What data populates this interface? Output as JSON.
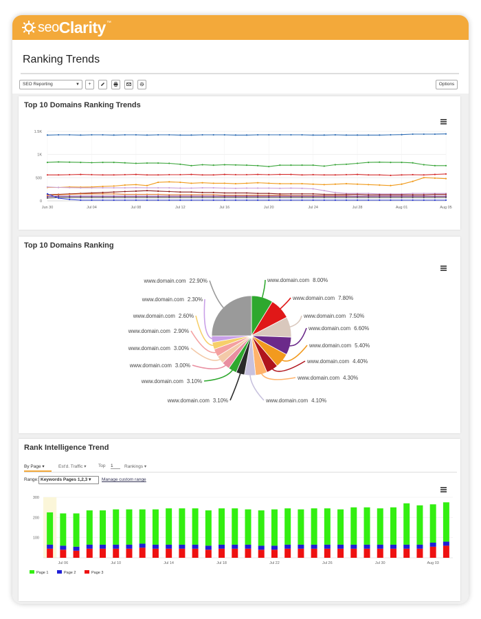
{
  "brand": {
    "seo": "seo",
    "clarity": "Clarity",
    "tm": "™"
  },
  "page_title": "Ranking Trends",
  "toolbar": {
    "report_select": "SEO Reporting",
    "options_label": "Options",
    "icons": [
      "plus-icon",
      "pencil-icon",
      "print-icon",
      "mail-icon",
      "gear-icon"
    ]
  },
  "colors": {
    "accent": "#f3a93a"
  },
  "panel1": {
    "title": "Top 10 Domains Ranking Trends"
  },
  "panel2": {
    "title": "Top 10 Domains Ranking"
  },
  "panel3": {
    "title": "Rank Intelligence Trend",
    "tabs": [
      "By Page",
      "Est'd. Traffic",
      "Top",
      "1",
      "Rankings"
    ],
    "range_label": "Range:",
    "range_value": "Keywords Pages 1,2,3",
    "manage_link": "Manage custom range"
  },
  "chart_data": [
    {
      "type": "line",
      "x": [
        "Jun 30",
        "Jul 01",
        "Jul 02",
        "Jul 03",
        "Jul 04",
        "Jul 05",
        "Jul 06",
        "Jul 07",
        "Jul 08",
        "Jul 09",
        "Jul 10",
        "Jul 11",
        "Jul 12",
        "Jul 13",
        "Jul 14",
        "Jul 15",
        "Jul 16",
        "Jul 17",
        "Jul 18",
        "Jul 19",
        "Jul 20",
        "Jul 21",
        "Jul 22",
        "Jul 23",
        "Jul 24",
        "Jul 25",
        "Jul 26",
        "Jul 27",
        "Jul 28",
        "Jul 29",
        "Jul 30",
        "Jul 31",
        "Aug 01",
        "Aug 02",
        "Aug 03",
        "Aug 04",
        "Aug 05"
      ],
      "x_tick_labels": [
        "Jun 30",
        "Jul 04",
        "Jul 08",
        "Jul 12",
        "Jul 16",
        "Jul 20",
        "Jul 24",
        "Jul 28",
        "Aug 01",
        "Aug 05"
      ],
      "y_ticks": [
        "0",
        "500",
        "1K",
        "1.5K"
      ],
      "ylim": [
        0,
        1500
      ],
      "grid": true,
      "series": [
        {
          "color": "#2e6db4",
          "values": [
            1420,
            1425,
            1425,
            1420,
            1425,
            1425,
            1420,
            1425,
            1425,
            1420,
            1425,
            1425,
            1420,
            1420,
            1425,
            1425,
            1425,
            1420,
            1420,
            1425,
            1425,
            1425,
            1425,
            1425,
            1420,
            1420,
            1425,
            1420,
            1420,
            1420,
            1420,
            1425,
            1430,
            1440,
            1440,
            1440,
            1445
          ]
        },
        {
          "color": "#3aa53a",
          "values": [
            830,
            840,
            835,
            830,
            825,
            830,
            830,
            820,
            810,
            815,
            815,
            810,
            790,
            760,
            780,
            770,
            780,
            775,
            770,
            760,
            740,
            770,
            770,
            770,
            770,
            750,
            780,
            790,
            810,
            830,
            835,
            830,
            830,
            820,
            780,
            760,
            760
          ]
        },
        {
          "color": "#d42b2b",
          "values": [
            560,
            560,
            565,
            570,
            565,
            560,
            560,
            565,
            570,
            560,
            560,
            565,
            565,
            570,
            560,
            560,
            570,
            565,
            565,
            570,
            565,
            570,
            570,
            560,
            565,
            560,
            560,
            565,
            570,
            560,
            560,
            550,
            560,
            565,
            560,
            570,
            580
          ]
        },
        {
          "color": "#f09a1a",
          "values": [
            290,
            290,
            300,
            295,
            300,
            310,
            320,
            340,
            350,
            330,
            400,
            410,
            400,
            380,
            390,
            380,
            380,
            370,
            380,
            390,
            380,
            370,
            370,
            370,
            360,
            350,
            360,
            370,
            360,
            350,
            340,
            330,
            360,
            420,
            500,
            490,
            480
          ]
        },
        {
          "color": "#c9a0d8",
          "values": [
            300,
            290,
            285,
            280,
            280,
            280,
            280,
            280,
            285,
            280,
            280,
            280,
            275,
            275,
            280,
            280,
            275,
            270,
            275,
            275,
            275,
            270,
            275,
            270,
            260,
            220,
            180,
            160,
            160,
            160,
            150,
            150,
            150,
            160,
            160,
            160,
            160
          ]
        },
        {
          "color": "#8b1a1a",
          "values": [
            130,
            140,
            150,
            160,
            170,
            180,
            190,
            200,
            210,
            220,
            210,
            200,
            190,
            190,
            180,
            180,
            170,
            170,
            170,
            160,
            160,
            150,
            150,
            150,
            150,
            140,
            140,
            140,
            140,
            130,
            130,
            130,
            130,
            130,
            130,
            140,
            140
          ]
        },
        {
          "color": "#e07a2e",
          "values": [
            120,
            130,
            140,
            150,
            150,
            150,
            150,
            140,
            140,
            140,
            140,
            130,
            130,
            130,
            130,
            130,
            120,
            120,
            120,
            120,
            120,
            120,
            110,
            110,
            110,
            110,
            110,
            110,
            100,
            100,
            100,
            100,
            100,
            100,
            100,
            100,
            100
          ]
        },
        {
          "color": "#6b2a8a",
          "values": [
            90,
            100,
            100,
            100,
            100,
            100,
            100,
            100,
            100,
            100,
            100,
            100,
            100,
            100,
            100,
            100,
            100,
            100,
            100,
            100,
            100,
            100,
            100,
            100,
            100,
            100,
            100,
            100,
            100,
            100,
            100,
            100,
            100,
            100,
            100,
            100,
            100
          ]
        },
        {
          "color": "#555555",
          "values": [
            60,
            70,
            70,
            70,
            70,
            70,
            70,
            70,
            70,
            70,
            70,
            70,
            70,
            70,
            70,
            70,
            70,
            70,
            70,
            70,
            70,
            70,
            70,
            70,
            70,
            70,
            70,
            70,
            70,
            70,
            70,
            70,
            70,
            70,
            70,
            70,
            70
          ]
        },
        {
          "color": "#2a3bd6",
          "values": [
            150,
            60,
            30,
            15,
            15,
            15,
            15,
            15,
            15,
            15,
            15,
            15,
            15,
            15,
            15,
            15,
            15,
            15,
            15,
            15,
            15,
            15,
            15,
            15,
            15,
            15,
            15,
            15,
            15,
            15,
            15,
            15,
            15,
            15,
            15,
            15,
            15
          ]
        }
      ]
    },
    {
      "type": "pie",
      "labels": [
        "www.domain.com",
        "www.domain.com",
        "www.domain.com",
        "www.domain.com",
        "www.domain.com",
        "www.domain.com",
        "www.domain.com",
        "www.domain.com",
        "www.domain.com",
        "www.domain.com",
        "www.domain.com",
        "www.domain.com",
        "www.domain.com",
        "www.domain.com",
        "www.domain.com",
        "www.domain.com"
      ],
      "values": [
        8.0,
        7.8,
        7.5,
        6.6,
        5.4,
        4.4,
        4.3,
        4.1,
        3.1,
        3.1,
        3.0,
        3.0,
        2.9,
        2.6,
        2.3,
        22.9
      ],
      "value_labels": [
        "8.00%",
        "7.80%",
        "7.50%",
        "6.60%",
        "5.40%",
        "4.40%",
        "4.30%",
        "4.10%",
        "3.10%",
        "3.10%",
        "3.00%",
        "3.00%",
        "2.90%",
        "2.60%",
        "2.30%",
        "22.90%"
      ],
      "colors": [
        "#2ea82e",
        "#e01818",
        "#d9c8bd",
        "#6b2a8a",
        "#f29a1e",
        "#b0151d",
        "#ffb36b",
        "#c8c2de",
        "#2a2a2a",
        "#2ea82e",
        "#e98ea0",
        "#f3c9a8",
        "#f4a0a0",
        "#f6cf6a",
        "#c9a0e8",
        "#9a9a9a"
      ]
    },
    {
      "type": "bar",
      "stacked": true,
      "categories": [
        "Jul 05",
        "Jul 06",
        "Jul 07",
        "Jul 08",
        "Jul 09",
        "Jul 10",
        "Jul 11",
        "Jul 12",
        "Jul 13",
        "Jul 14",
        "Jul 15",
        "Jul 16",
        "Jul 17",
        "Jul 18",
        "Jul 19",
        "Jul 20",
        "Jul 21",
        "Jul 22",
        "Jul 23",
        "Jul 24",
        "Jul 25",
        "Jul 26",
        "Jul 27",
        "Jul 28",
        "Jul 29",
        "Jul 30",
        "Jul 31",
        "Aug 01",
        "Aug 02",
        "Aug 03",
        "Aug 04"
      ],
      "x_tick_labels": [
        "Jul 06",
        "Jul 10",
        "Jul 14",
        "Jul 18",
        "Jul 22",
        "Jul 26",
        "Jul 30",
        "Aug 03"
      ],
      "y_ticks": [
        "100",
        "200",
        "300"
      ],
      "ylim": [
        0,
        300
      ],
      "series": [
        {
          "name": "Page 1",
          "color": "#33ee11",
          "values": [
            160,
            160,
            165,
            170,
            170,
            175,
            175,
            170,
            175,
            180,
            180,
            180,
            175,
            180,
            180,
            175,
            175,
            180,
            180,
            175,
            180,
            180,
            175,
            185,
            185,
            180,
            185,
            205,
            195,
            190,
            195
          ]
        },
        {
          "name": "Page 2",
          "color": "#1f1fd6",
          "values": [
            20,
            20,
            20,
            20,
            20,
            20,
            20,
            20,
            20,
            20,
            20,
            20,
            20,
            20,
            20,
            20,
            20,
            20,
            20,
            20,
            20,
            20,
            20,
            20,
            20,
            20,
            20,
            20,
            20,
            20,
            20
          ]
        },
        {
          "name": "Page 3",
          "color": "#ee1111",
          "values": [
            45,
            40,
            35,
            45,
            45,
            45,
            45,
            50,
            45,
            45,
            45,
            45,
            40,
            45,
            45,
            45,
            40,
            40,
            45,
            45,
            45,
            45,
            45,
            45,
            45,
            45,
            45,
            45,
            45,
            55,
            60
          ]
        }
      ]
    }
  ]
}
